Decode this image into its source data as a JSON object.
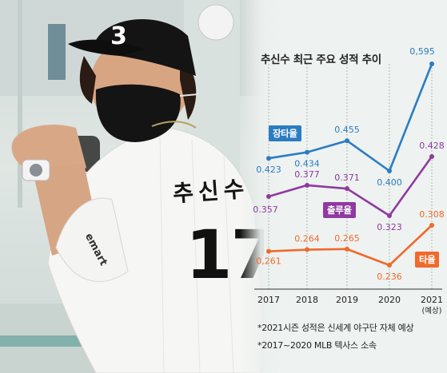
{
  "chart_data": {
    "type": "line",
    "title": "추신수 최근 주요 성적 추이",
    "categories": [
      "2017",
      "2018",
      "2019",
      "2020",
      "2021"
    ],
    "category_sublabels": [
      "",
      "",
      "",
      "",
      "(예상)"
    ],
    "series": [
      {
        "name": "장타율",
        "values": [
          0.423,
          0.434,
          0.455,
          0.4,
          0.595
        ],
        "labels": [
          "0.423",
          "0.434",
          "0.455",
          "0.400",
          "0,595"
        ],
        "color": "#2b7cc2"
      },
      {
        "name": "출루율",
        "values": [
          0.357,
          0.377,
          0.371,
          0.323,
          0.428
        ],
        "labels": [
          "0.357",
          "0.377",
          "0.371",
          "0.323",
          "0.428"
        ],
        "color": "#8e3aa0"
      },
      {
        "name": "타율",
        "values": [
          0.261,
          0.264,
          0.265,
          0.236,
          0.308
        ],
        "labels": [
          "0,261",
          "0.264",
          "0.265",
          "0.236",
          "0.308"
        ],
        "color": "#ef6a2c"
      }
    ],
    "ylim": [
      0.2,
      0.62
    ],
    "grid": false,
    "notes": [
      "*2021시즌 성적은 신세계 야구단 자체 예상",
      "*2017~2020 MLB 텍사스 소속"
    ]
  },
  "photo": {
    "cap_number": "3",
    "jersey_number": "17",
    "jersey_name": "추신수",
    "sleeve_patch": "emart"
  }
}
